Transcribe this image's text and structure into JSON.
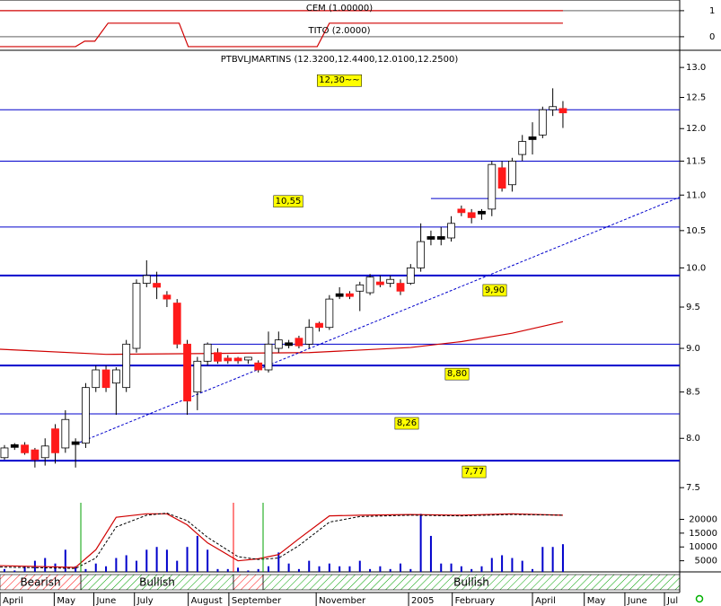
{
  "chart_data": {
    "type": "candlestick",
    "title": "PTBVLJMARTINS (12.3200,12.4400,12.0100,12.2500)",
    "log_scale": true,
    "up_color": "#ffffff",
    "down_color": "#ff1a1a",
    "doji_color": "#000000",
    "ylim": [
      7.44,
      13.28
    ],
    "yticks": [
      7.5,
      {
        "value": 8,
        "label": "8.0"
      },
      8.5,
      {
        "value": 9,
        "label": "9.0"
      },
      9.5,
      {
        "value": 10,
        "label": "10.0"
      },
      10.5,
      {
        "value": 11,
        "label": "11.0"
      },
      11.5,
      {
        "value": 12,
        "label": "12.0"
      },
      12.5,
      {
        "value": 13,
        "label": "13.0"
      }
    ],
    "xlim": [
      -0.44,
      66.5
    ],
    "xticks": [
      {
        "value": -0.44,
        "label": "April"
      },
      {
        "value": 4.9,
        "label": "May"
      },
      {
        "value": 8.8,
        "label": "June"
      },
      {
        "value": 12.8,
        "label": "July"
      },
      {
        "value": 18.1,
        "label": "August"
      },
      {
        "value": 22.1,
        "label": "September"
      },
      {
        "value": 30.7,
        "label": "November"
      },
      {
        "value": 39.8,
        "label": "2005"
      },
      {
        "value": 44.1,
        "label": "February"
      },
      {
        "value": 52,
        "label": "April"
      },
      {
        "value": 57.1,
        "label": "May"
      },
      {
        "value": 61.1,
        "label": "June"
      },
      {
        "value": 65,
        "label": "Jul"
      }
    ],
    "x": [
      0,
      1,
      2,
      3,
      4,
      5,
      6,
      7,
      8,
      9,
      10,
      11,
      12,
      13,
      14,
      15,
      16,
      17,
      18,
      19,
      20,
      21,
      22,
      23,
      24,
      25,
      26,
      27,
      28,
      29,
      30,
      31,
      32,
      33,
      34,
      35,
      36,
      37,
      38,
      39,
      40,
      41,
      42,
      43,
      44,
      45,
      46,
      47,
      48,
      49,
      50,
      51,
      52,
      53,
      54,
      55
    ],
    "open": [
      7.8,
      7.92,
      7.93,
      7.88,
      7.8,
      8.1,
      7.9,
      7.95,
      7.95,
      8.55,
      8.75,
      8.6,
      8.55,
      9.0,
      9.8,
      9.8,
      9.65,
      9.55,
      9.05,
      8.5,
      8.85,
      8.95,
      8.87,
      8.87,
      8.85,
      8.83,
      8.75,
      9.0,
      9.05,
      9.12,
      9.05,
      9.3,
      9.25,
      9.65,
      9.65,
      9.7,
      9.68,
      9.8,
      9.8,
      9.8,
      9.8,
      10.0,
      10.4,
      10.4,
      10.4,
      10.8,
      10.75,
      10.75,
      10.8,
      11.4,
      11.15,
      11.6,
      11.85,
      11.9,
      12.3,
      12.32
    ],
    "high": [
      7.93,
      7.95,
      7.96,
      7.9,
      8.0,
      8.15,
      8.3,
      8.0,
      8.6,
      8.8,
      8.8,
      8.78,
      9.1,
      9.85,
      10.1,
      9.95,
      9.7,
      9.6,
      9.1,
      8.9,
      9.07,
      9.0,
      8.92,
      8.9,
      8.9,
      8.86,
      9.2,
      9.2,
      9.1,
      9.15,
      9.35,
      9.32,
      9.65,
      9.75,
      9.7,
      9.82,
      9.92,
      9.9,
      9.9,
      9.85,
      10.05,
      10.6,
      10.5,
      10.55,
      10.7,
      10.85,
      10.8,
      10.8,
      11.5,
      11.5,
      11.55,
      11.9,
      12.1,
      12.35,
      12.65,
      12.44
    ],
    "low": [
      7.78,
      7.88,
      7.83,
      7.7,
      7.72,
      7.74,
      7.85,
      7.7,
      7.9,
      8.5,
      8.5,
      8.25,
      8.5,
      8.95,
      9.75,
      9.6,
      9.5,
      9.0,
      8.25,
      8.3,
      8.8,
      8.82,
      8.82,
      8.82,
      8.82,
      8.72,
      8.72,
      8.95,
      9.0,
      9.0,
      9.0,
      9.2,
      9.22,
      9.6,
      9.6,
      9.45,
      9.65,
      9.75,
      9.75,
      9.65,
      9.78,
      9.95,
      10.3,
      10.3,
      10.35,
      10.7,
      10.6,
      10.65,
      10.7,
      11.05,
      11.05,
      11.5,
      11.6,
      11.85,
      12.2,
      12.01
    ],
    "close": [
      7.9,
      7.92,
      7.85,
      7.78,
      7.92,
      7.85,
      8.2,
      7.95,
      8.55,
      8.75,
      8.55,
      8.75,
      9.05,
      9.8,
      9.9,
      9.75,
      9.6,
      9.05,
      8.4,
      8.85,
      9.05,
      8.85,
      8.85,
      8.85,
      8.88,
      8.75,
      9.05,
      9.1,
      9.05,
      9.03,
      9.25,
      9.25,
      9.6,
      9.65,
      9.62,
      9.78,
      9.88,
      9.78,
      9.85,
      9.7,
      10.0,
      10.35,
      10.4,
      10.4,
      10.6,
      10.75,
      10.68,
      10.75,
      11.45,
      11.1,
      11.5,
      11.8,
      11.85,
      12.3,
      12.35,
      12.25
    ],
    "ma": {
      "color": "#d00000",
      "x": [
        -0.44,
        10,
        20,
        30,
        40,
        45,
        50,
        55
      ],
      "values": [
        8.99,
        8.93,
        8.94,
        8.95,
        9.01,
        9.08,
        9.18,
        9.32
      ]
    },
    "trendline": {
      "color": "#0000cc",
      "x": [
        7,
        66.5
      ],
      "values": [
        7.94,
        10.97
      ]
    },
    "hline_color": "#0000cc",
    "hlines": [
      {
        "value": 12.3,
        "label": "12,30~~"
      },
      {
        "value": 11.5
      },
      {
        "value": 10.95,
        "x_from": 42.0
      },
      {
        "value": 10.55,
        "label": "10,55"
      },
      {
        "value": 9.9,
        "label": "9,90",
        "bold": true
      },
      {
        "value": 9.05,
        "x_from": 19.7
      },
      {
        "value": 8.8,
        "label": "8,80",
        "bold": true
      },
      {
        "value": 8.26,
        "label": "8,26"
      },
      {
        "value": 7.77,
        "label": "7,77",
        "bold": true
      }
    ],
    "top_panel": {
      "ylim": [
        -0.52,
        1.41
      ],
      "yticks": [
        0,
        1
      ],
      "color": "#d00000",
      "series": [
        {
          "name": "CEM (1.00000)",
          "x": [
            -0.44,
            55
          ],
          "values": [
            1,
            1
          ]
        },
        {
          "name": "TITO (2.0000)",
          "x": [
            -0.44,
            7,
            7.9,
            8.9,
            10.2,
            17.2,
            18.1,
            30.8,
            32,
            55
          ],
          "values": [
            -0.38,
            -0.38,
            -0.17,
            -0.17,
            0.52,
            0.52,
            -0.38,
            -0.38,
            0.52,
            0.52
          ]
        }
      ]
    },
    "volume": {
      "color": "#0000cc",
      "ylim": [
        0,
        26000
      ],
      "yticks": [
        5000,
        10000,
        15000,
        20000
      ],
      "values": [
        2000,
        1500,
        3000,
        5000,
        6000,
        4000,
        9000,
        3000,
        2000,
        4000,
        3000,
        6000,
        7000,
        5000,
        9000,
        10000,
        9000,
        5000,
        10000,
        14000,
        9000,
        2000,
        2000,
        2500,
        1500,
        2000,
        3000,
        8000,
        4000,
        2000,
        5000,
        3000,
        4000,
        3000,
        3000,
        5000,
        2000,
        3000,
        2000,
        4000,
        2000,
        22000,
        14000,
        4000,
        4000,
        3000,
        2000,
        3000,
        6000,
        7000,
        6000,
        5000,
        2000,
        10000,
        10000,
        11000
      ]
    },
    "oscillator": {
      "y2lim": [
        0,
        100
      ],
      "x": [
        -0.44,
        7,
        9,
        11,
        14,
        16,
        18,
        20,
        23,
        25,
        27,
        29,
        32,
        35,
        40,
        45,
        50,
        55
      ],
      "main": {
        "color": "#d00000",
        "values": [
          9,
          6.5,
          32,
          79,
          84,
          84,
          68,
          42,
          16,
          19,
          25,
          48,
          81,
          82,
          83,
          82,
          84,
          82
        ]
      },
      "signal": {
        "color": "#000000",
        "values": [
          7,
          5,
          20,
          65,
          82,
          85,
          74,
          50,
          22,
          18,
          20,
          38,
          72,
          80,
          82,
          81,
          83,
          82
        ]
      }
    },
    "regimes": [
      {
        "label": "Bearish",
        "x": [
          -0.44,
          7.52
        ],
        "color": "#ff0000"
      },
      {
        "label": "Bullish",
        "x": [
          7.52,
          22.55
        ],
        "color": "#00a000"
      },
      {
        "x": [
          22.55,
          25.47
        ],
        "color": "#ff0000"
      },
      {
        "label": "Bullish",
        "x": [
          25.47,
          66.5
        ],
        "color": "#00a000"
      }
    ]
  }
}
